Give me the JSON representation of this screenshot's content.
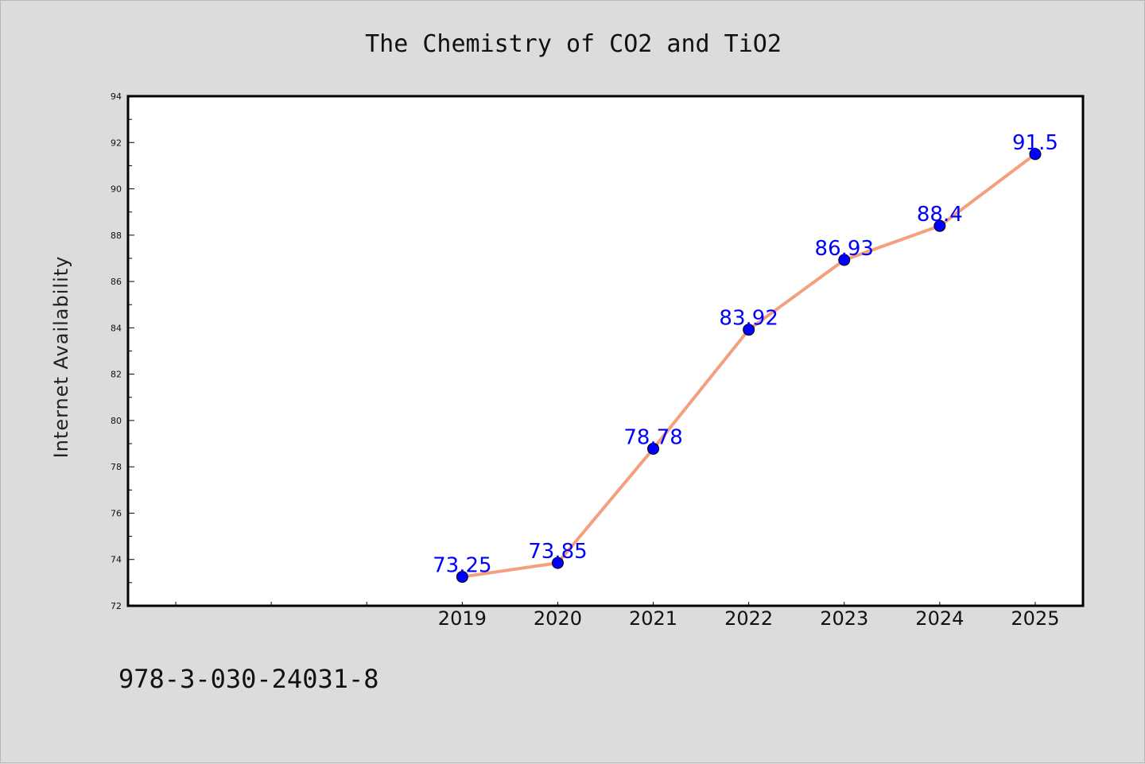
{
  "chart_data": {
    "type": "line",
    "title": "The Chemistry of CO2 and TiO2",
    "xlabel": "",
    "ylabel": "Internet Availability",
    "categories": [
      "",
      "",
      "",
      "2019",
      "2020",
      "2021",
      "2022",
      "2023",
      "2024",
      "2025"
    ],
    "series": [
      {
        "values": [
          null,
          null,
          null,
          73.25,
          73.85,
          78.78,
          83.92,
          86.93,
          88.4,
          91.5
        ],
        "labels": [
          "",
          "",
          "",
          "73.25",
          "73.85",
          "78.78",
          "83.92",
          "86.93",
          "88.4",
          "91.5"
        ],
        "line_color": "#f4a07e",
        "marker_color": "#0000ff"
      }
    ],
    "ylim": [
      72,
      94
    ],
    "yticks": [
      "72",
      "74",
      "76",
      "78",
      "80",
      "82",
      "84",
      "86",
      "88",
      "90",
      "92",
      "94"
    ],
    "grid": false,
    "legend": "none",
    "label_color": "#0000ff"
  },
  "footer": {
    "isbn": "978-3-030-24031-8"
  }
}
